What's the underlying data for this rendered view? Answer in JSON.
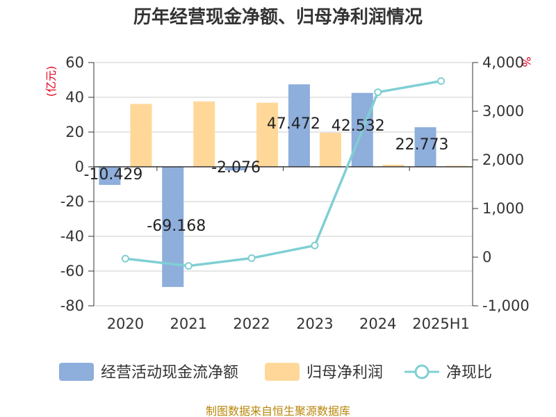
{
  "title": "历年经营现金净额、归母净利润情况",
  "source": "制图数据来自恒生聚源数据库",
  "colors": {
    "operating_cash": "#8eaedc",
    "net_profit": "#ffd899",
    "ratio_line": "#7fcfd3",
    "axis": "#333333",
    "grid": "#cccccc",
    "unit_label": "#e0001b",
    "source": "#b8860b"
  },
  "chart_data": {
    "type": "bar",
    "title": "历年经营现金净额、归母净利润情况",
    "categories": [
      "2020",
      "2021",
      "2022",
      "2023",
      "2024",
      "2025H1"
    ],
    "left_axis": {
      "unit": "(亿元)",
      "ylim": [
        -80,
        60
      ],
      "ticks": [
        60,
        40,
        20,
        0,
        -20,
        -40,
        -60,
        -80
      ],
      "tick_labels": [
        "60",
        "40",
        "20",
        "0",
        "-20",
        "-40",
        "-60",
        "-80"
      ]
    },
    "right_axis": {
      "unit": "%",
      "ylim": [
        -1000,
        4000
      ],
      "ticks": [
        4000,
        3000,
        2000,
        1000,
        0,
        -1000
      ],
      "tick_labels": [
        "4,000",
        "3,000",
        "2,000",
        "1,000",
        "0",
        "-1,000"
      ]
    },
    "series": [
      {
        "name": "经营活动现金流净额",
        "kind": "bar",
        "axis": "left",
        "values": [
          -10.429,
          -69.168,
          -2.076,
          47.472,
          42.532,
          22.773
        ],
        "labels": [
          "-10.429",
          "-69.168",
          "-2.076",
          "47.472",
          "42.532",
          "22.773"
        ]
      },
      {
        "name": "归母净利润",
        "kind": "bar",
        "axis": "left",
        "values": [
          36.2,
          37.6,
          36.9,
          19.6,
          1.2,
          0.6
        ]
      },
      {
        "name": "净现比",
        "kind": "line",
        "axis": "right",
        "values": [
          -30,
          -180,
          -20,
          240,
          3390,
          3620
        ]
      }
    ],
    "grid": true,
    "legend_position": "bottom"
  }
}
